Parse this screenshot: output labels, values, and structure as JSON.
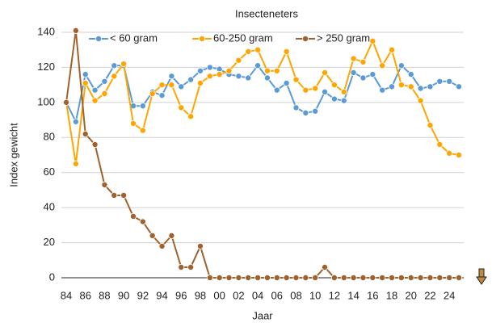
{
  "chart_data": {
    "type": "line",
    "title": "Insecteneters",
    "x_label": "Jaar",
    "y_label": "Index gewicht",
    "categories": [
      "84",
      null,
      "86",
      null,
      "88",
      null,
      "90",
      null,
      "92",
      null,
      "94",
      null,
      "96",
      null,
      "98",
      null,
      "00",
      null,
      "02",
      null,
      "04",
      null,
      "06",
      null,
      "08",
      null,
      "10",
      null,
      "12",
      null,
      "14",
      null,
      "16",
      null,
      "18",
      null,
      "20",
      null,
      "22",
      null,
      "24",
      null
    ],
    "series": [
      {
        "name": "< 60 gram",
        "color": "#5b9bd5",
        "values": [
          100,
          89,
          116,
          107,
          112,
          121,
          121,
          98,
          98,
          106,
          104,
          115,
          109,
          113,
          118,
          120,
          119,
          116,
          115,
          114,
          121,
          114,
          107,
          111,
          97,
          94,
          95,
          106,
          102,
          101,
          117,
          114,
          116,
          107,
          109,
          121,
          116,
          108,
          109,
          112,
          112,
          109
        ]
      },
      {
        "name": "60-250 gram",
        "color": "#ffa500",
        "values": [
          100,
          65,
          111,
          101,
          105,
          115,
          122,
          88,
          84,
          105,
          110,
          110,
          97,
          92,
          111,
          115,
          116,
          118,
          124,
          129,
          130,
          118,
          118,
          129,
          113,
          107,
          108,
          117,
          110,
          106,
          125,
          123,
          135,
          121,
          130,
          110,
          109,
          101,
          87,
          76,
          71,
          70
        ]
      },
      {
        "name": "> 250 gram",
        "color": "#a0622d",
        "values": [
          100,
          141,
          82,
          76,
          53,
          47,
          47,
          35,
          32,
          24,
          18,
          24,
          6,
          6,
          18,
          0,
          0,
          0,
          0,
          0,
          0,
          0,
          0,
          0,
          0,
          0,
          0,
          6,
          0,
          0,
          0,
          0,
          0,
          0,
          0,
          0,
          0,
          0,
          0,
          0,
          0,
          0
        ]
      }
    ],
    "ylim": [
      0,
      140
    ],
    "yticks": [
      0,
      20,
      40,
      60,
      80,
      100,
      120,
      140
    ],
    "grid": true,
    "legend": "top"
  }
}
